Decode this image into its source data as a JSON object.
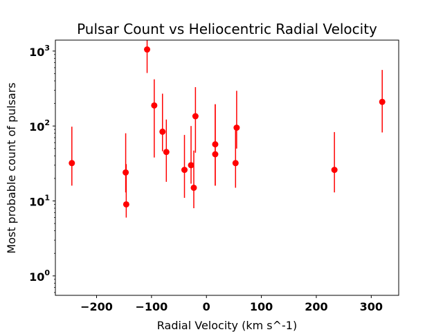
{
  "chart_data": {
    "type": "scatter",
    "title": "Pulsar Count vs Heliocentric Radial Velocity",
    "xlabel": "Radial Velocity (km s^-1)",
    "ylabel": "Most probable count of pulsars",
    "xlim": [
      -275,
      350
    ],
    "ylim": [
      0.55,
      1400
    ],
    "yscale": "log",
    "grid": false,
    "legend": "none",
    "color": "#ff0000",
    "x_ticks": [
      {
        "value": -200,
        "label": "−200"
      },
      {
        "value": -100,
        "label": "−100"
      },
      {
        "value": 0,
        "label": "0"
      },
      {
        "value": 100,
        "label": "100"
      },
      {
        "value": 200,
        "label": "200"
      },
      {
        "value": 300,
        "label": "300"
      }
    ],
    "y_ticks": [
      {
        "value": 1,
        "base": "10",
        "exp": "0"
      },
      {
        "value": 10,
        "base": "10",
        "exp": "1"
      },
      {
        "value": 100,
        "base": "10",
        "exp": "2"
      },
      {
        "value": 1000,
        "base": "10",
        "exp": "3"
      }
    ],
    "points": [
      {
        "x": -245,
        "y": 32,
        "ylow": 16,
        "yhigh": 98
      },
      {
        "x": -147,
        "y": 24,
        "ylow": 13,
        "yhigh": 80
      },
      {
        "x": -146,
        "y": 9,
        "ylow": 6,
        "yhigh": 31
      },
      {
        "x": -108,
        "y": 1050,
        "ylow": 510,
        "yhigh": 1500
      },
      {
        "x": -95,
        "y": 188,
        "ylow": 38,
        "yhigh": 420
      },
      {
        "x": -80,
        "y": 84,
        "ylow": 46,
        "yhigh": 270
      },
      {
        "x": -73,
        "y": 45,
        "ylow": 18,
        "yhigh": 122
      },
      {
        "x": -40,
        "y": 26,
        "ylow": 11,
        "yhigh": 76
      },
      {
        "x": -28,
        "y": 30,
        "ylow": 17,
        "yhigh": 100
      },
      {
        "x": -23,
        "y": 15,
        "ylow": 8,
        "yhigh": 47
      },
      {
        "x": -20,
        "y": 135,
        "ylow": 44,
        "yhigh": 330
      },
      {
        "x": 16,
        "y": 57,
        "ylow": 16,
        "yhigh": 195
      },
      {
        "x": 16,
        "y": 42,
        "ylow": 16,
        "yhigh": 195
      },
      {
        "x": 53,
        "y": 32,
        "ylow": 15,
        "yhigh": 95
      },
      {
        "x": 55,
        "y": 95,
        "ylow": 50,
        "yhigh": 295
      },
      {
        "x": 233,
        "y": 26,
        "ylow": 13,
        "yhigh": 83
      },
      {
        "x": 320,
        "y": 210,
        "ylow": 82,
        "yhigh": 560
      }
    ]
  }
}
